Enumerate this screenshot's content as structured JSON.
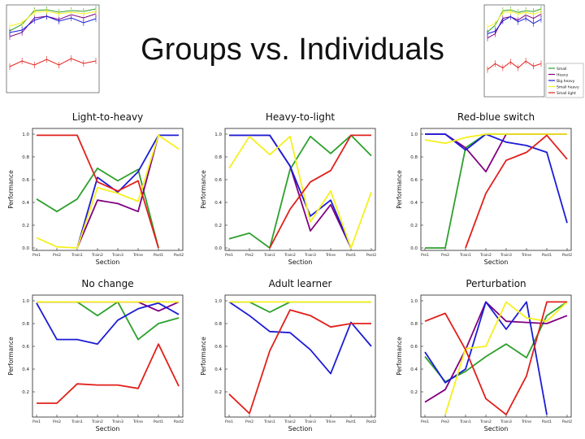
{
  "slide": {
    "title": "Groups vs. Individuals"
  },
  "colors": {
    "green": "#2ca02c",
    "purple": "#800080",
    "blue": "#1c1cd6",
    "yellow": "#f5f01e",
    "red": "#e0201b"
  },
  "thumbnails": {
    "legend": [
      "Small",
      "Heavy",
      "Big heavy",
      "Small heavy",
      "Small light"
    ],
    "colors": [
      "#2ca02c",
      "#800080",
      "#1c1cd6",
      "#f5f01e",
      "#e0201b"
    ]
  },
  "chart_data": [
    {
      "type": "line",
      "title": "Light-to-heavy",
      "xlabel": "Section",
      "ylabel": "Performance",
      "categories": [
        "Pre1",
        "Pre2",
        "Train1",
        "Train2",
        "Train3",
        "Trline",
        "Post1",
        "Post2"
      ],
      "ylim": [
        0,
        1.0
      ],
      "yticks": [
        "0.0",
        "0.2",
        "0.4",
        "0.6",
        "0.8",
        "1.0"
      ],
      "series": [
        {
          "color": "#2ca02c",
          "values": [
            0.43,
            0.32,
            0.43,
            0.7,
            0.59,
            0.69,
            0.0,
            null
          ]
        },
        {
          "color": "#800080",
          "values": [
            null,
            null,
            0.0,
            0.42,
            0.39,
            0.32,
            0.99,
            null
          ]
        },
        {
          "color": "#1c1cd6",
          "values": [
            null,
            null,
            0.0,
            0.62,
            0.49,
            0.67,
            0.99,
            0.99
          ]
        },
        {
          "color": "#f5f01e",
          "values": [
            0.09,
            0.01,
            0.0,
            0.53,
            0.48,
            0.41,
            0.99,
            0.87
          ]
        },
        {
          "color": "#e0201b",
          "values": [
            0.99,
            0.99,
            0.99,
            0.58,
            0.5,
            0.59,
            0.0,
            null
          ]
        }
      ]
    },
    {
      "type": "line",
      "title": "Heavy-to-light",
      "xlabel": "Section",
      "ylabel": "Performance",
      "categories": [
        "Pre1",
        "Pre2",
        "Train1",
        "Train2",
        "Train3",
        "Trline",
        "Post1",
        "Post2"
      ],
      "ylim": [
        0,
        1.0
      ],
      "yticks": [
        "0.0",
        "0.2",
        "0.4",
        "0.6",
        "0.8",
        "1.0"
      ],
      "series": [
        {
          "color": "#2ca02c",
          "values": [
            0.08,
            0.13,
            0.0,
            0.69,
            0.98,
            0.83,
            0.99,
            0.81
          ]
        },
        {
          "color": "#800080",
          "values": [
            0.99,
            0.99,
            0.99,
            0.72,
            0.15,
            0.38,
            0.0,
            null
          ]
        },
        {
          "color": "#1c1cd6",
          "values": [
            0.99,
            0.99,
            0.99,
            0.72,
            0.28,
            0.42,
            0.0,
            null
          ]
        },
        {
          "color": "#f5f01e",
          "values": [
            0.7,
            0.98,
            0.82,
            0.98,
            0.23,
            0.5,
            0.0,
            0.49
          ]
        },
        {
          "color": "#e0201b",
          "values": [
            null,
            null,
            0.0,
            0.34,
            0.58,
            0.68,
            0.99,
            0.99
          ]
        }
      ]
    },
    {
      "type": "line",
      "title": "Red-blue switch",
      "xlabel": "Section",
      "ylabel": "Performance",
      "categories": [
        "Pre1",
        "Pre2",
        "Train1",
        "Train2",
        "Train3",
        "Trline",
        "Post1",
        "Post2"
      ],
      "ylim": [
        0,
        1.0
      ],
      "yticks": [
        "0.0",
        "0.2",
        "0.4",
        "0.6",
        "0.8",
        "1.0"
      ],
      "series": [
        {
          "color": "#2ca02c",
          "values": [
            0.0,
            0.0,
            0.88,
            1.0,
            1.0,
            1.0,
            1.0,
            1.0
          ]
        },
        {
          "color": "#800080",
          "values": [
            1.0,
            1.0,
            0.88,
            0.67,
            1.0,
            1.0,
            1.0,
            1.0
          ]
        },
        {
          "color": "#1c1cd6",
          "values": [
            1.0,
            1.0,
            0.86,
            1.0,
            0.93,
            0.9,
            0.84,
            0.22
          ]
        },
        {
          "color": "#f5f01e",
          "values": [
            0.95,
            0.92,
            0.97,
            1.0,
            1.0,
            1.0,
            1.0,
            1.0
          ]
        },
        {
          "color": "#e0201b",
          "values": [
            null,
            null,
            0.0,
            0.48,
            0.77,
            0.84,
            0.99,
            0.78
          ]
        }
      ]
    },
    {
      "type": "line",
      "title": "No change",
      "xlabel": "Section",
      "ylabel": "Performance",
      "categories": [
        "Pre1",
        "Pre2",
        "Train1",
        "Train2",
        "Train3",
        "Trline",
        "Post1",
        "Post2"
      ],
      "ylim": [
        0,
        1.0
      ],
      "yticks": [
        "0.2",
        "0.4",
        "0.6",
        "0.8",
        "1.0"
      ],
      "series": [
        {
          "color": "#2ca02c",
          "values": [
            0.99,
            0.99,
            0.99,
            0.87,
            0.99,
            0.66,
            0.8,
            0.85
          ]
        },
        {
          "color": "#800080",
          "values": [
            0.99,
            0.99,
            0.99,
            0.99,
            0.99,
            0.99,
            0.91,
            0.99
          ]
        },
        {
          "color": "#1c1cd6",
          "values": [
            0.98,
            0.66,
            0.66,
            0.62,
            0.83,
            0.93,
            0.98,
            0.88
          ]
        },
        {
          "color": "#f5f01e",
          "values": [
            0.99,
            0.99,
            0.99,
            0.99,
            0.99,
            0.99,
            0.99,
            0.99
          ]
        },
        {
          "color": "#e0201b",
          "values": [
            0.1,
            0.1,
            0.27,
            0.26,
            0.26,
            0.23,
            0.62,
            0.25
          ]
        }
      ]
    },
    {
      "type": "line",
      "title": "Adult learner",
      "xlabel": "Section",
      "ylabel": "Performance",
      "categories": [
        "Pre1",
        "Pre2",
        "Train1",
        "Train2",
        "Train3",
        "Trline",
        "Post1",
        "Post2"
      ],
      "ylim": [
        0,
        1.0
      ],
      "yticks": [
        "0.2",
        "0.4",
        "0.6",
        "0.8",
        "1.0"
      ],
      "series": [
        {
          "color": "#2ca02c",
          "values": [
            0.99,
            0.99,
            0.9,
            0.99,
            0.99,
            0.99,
            0.99,
            0.99
          ]
        },
        {
          "color": "#1c1cd6",
          "values": [
            0.99,
            0.87,
            0.73,
            0.72,
            0.57,
            0.36,
            0.81,
            0.6
          ]
        },
        {
          "color": "#f5f01e",
          "values": [
            0.99,
            0.99,
            0.99,
            0.99,
            0.99,
            0.99,
            0.99,
            0.99
          ]
        },
        {
          "color": "#e0201b",
          "values": [
            0.18,
            0.01,
            0.56,
            0.92,
            0.87,
            0.77,
            0.8,
            0.8
          ]
        }
      ]
    },
    {
      "type": "line",
      "title": "Perturbation",
      "xlabel": "Section",
      "ylabel": "Performance",
      "categories": [
        "Pre1",
        "Pre2",
        "Train1",
        "Train2",
        "Train3",
        "Trline",
        "Post1",
        "Post2"
      ],
      "ylim": [
        0,
        1.0
      ],
      "yticks": [
        "0.2",
        "0.4",
        "0.6",
        "0.8",
        "1.0"
      ],
      "series": [
        {
          "color": "#2ca02c",
          "values": [
            0.51,
            0.29,
            0.38,
            0.51,
            0.62,
            0.5,
            0.87,
            0.99
          ]
        },
        {
          "color": "#800080",
          "values": [
            0.11,
            0.22,
            0.57,
            0.99,
            0.82,
            0.81,
            0.8,
            0.87
          ]
        },
        {
          "color": "#1c1cd6",
          "values": [
            0.55,
            0.28,
            0.4,
            0.99,
            0.75,
            0.99,
            0.0,
            null
          ]
        },
        {
          "color": "#f5f01e",
          "values": [
            null,
            0.0,
            0.58,
            0.6,
            0.99,
            0.85,
            0.82,
            0.99
          ]
        },
        {
          "color": "#e0201b",
          "values": [
            0.82,
            0.89,
            0.57,
            0.14,
            0.0,
            0.34,
            0.99,
            0.99
          ]
        }
      ]
    }
  ]
}
